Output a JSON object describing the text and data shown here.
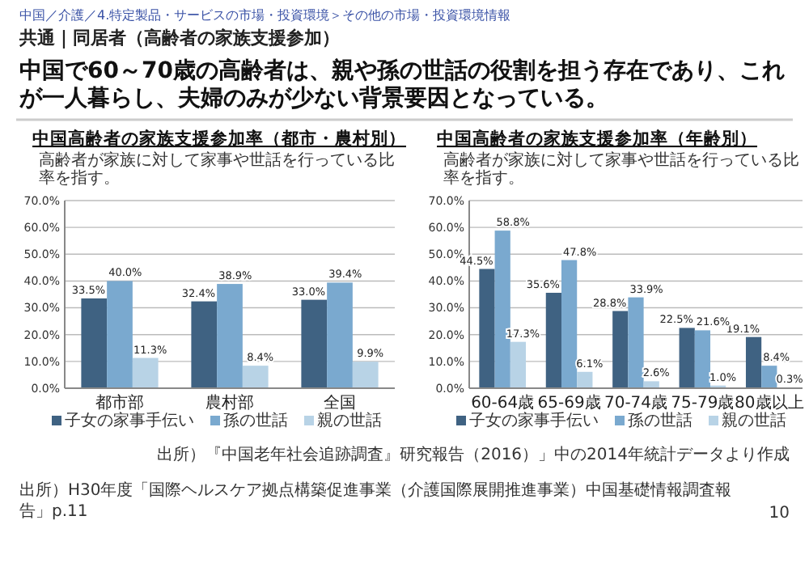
{
  "chart_data": [
    {
      "type": "bar",
      "title": "中国高齢者の家族支援参加率（都市・農村別）",
      "subtitle": "高齢者が家族に対して家事や世話を行っている比率を指す。",
      "annotations": [
        "中国／介護／4.特定製品・サービスの市場・投資環境＞その他の市場・投資環境情報",
        "共通｜同居者（高齢者の家族支援参加）",
        "中国で60～70歳の高齢者は、親や孫の世話の役割を担う存在であり、これが一人暮らし、夫婦のみが少ない背景要因となっている。"
      ],
      "categories": [
        "都市部",
        "農村部",
        "全国"
      ],
      "series": [
        {
          "name": "子女の家事手伝い",
          "color": "#3f6282",
          "values": [
            33.5,
            32.4,
            33.0
          ],
          "value_labels": [
            "33.5%",
            "32.4%",
            "33.0%"
          ]
        },
        {
          "name": "孫の世話",
          "color": "#7aa9cf",
          "values": [
            40.0,
            38.9,
            39.4
          ],
          "value_labels": [
            "40.0%",
            "38.9%",
            "39.4%"
          ]
        },
        {
          "name": "親の世話",
          "color": "#b8d3e6",
          "values": [
            11.3,
            8.4,
            9.9
          ],
          "value_labels": [
            "11.3%",
            "8.4%",
            "9.9%"
          ]
        }
      ],
      "ylim": [
        0,
        70
      ],
      "yticks": [
        {
          "value": 0,
          "label": "0.0%"
        },
        {
          "value": 10,
          "label": "10.0%"
        },
        {
          "value": 20,
          "label": "20.0%"
        },
        {
          "value": 30,
          "label": "30.0%"
        },
        {
          "value": 40,
          "label": "40.0%"
        },
        {
          "value": 50,
          "label": "50.0%"
        },
        {
          "value": 60,
          "label": "60.0%"
        },
        {
          "value": 70,
          "label": "70.0%"
        }
      ],
      "grid": "y",
      "legend": "bottom"
    },
    {
      "type": "bar",
      "title": "中国高齢者の家族支援参加率（年齢別）",
      "subtitle": "高齢者が家族に対して家事や世話を行っている比率を指す。",
      "annotations": [
        "出所）『中国老年社会追跡調査』研究報告（2016）」中の2014年統計データより作成",
        "出所）H30年度「国際ヘルスケア拠点構築促進事業（介護国際展開推進事業）中国基礎情報調査報告」p.11",
        "10"
      ],
      "categories": [
        "60-64歳",
        "65-69歳",
        "70-74歳",
        "75-79歳",
        "80歳以上"
      ],
      "series": [
        {
          "name": "子女の家事手伝い",
          "color": "#3f6282",
          "values": [
            44.5,
            35.6,
            28.8,
            22.5,
            19.1
          ],
          "value_labels": [
            "44.5%",
            "35.6%",
            "28.8%",
            "22.5%",
            "19.1%"
          ]
        },
        {
          "name": "孫の世話",
          "color": "#7aa9cf",
          "values": [
            58.8,
            47.8,
            33.9,
            21.6,
            8.4
          ],
          "value_labels": [
            "58.8%",
            "47.8%",
            "33.9%",
            "21.6%",
            "8.4%"
          ]
        },
        {
          "name": "親の世話",
          "color": "#b8d3e6",
          "values": [
            17.3,
            6.1,
            2.6,
            1.0,
            0.3
          ],
          "value_labels": [
            "17.3%",
            "6.1%",
            "2.6%",
            "1.0%",
            "0.3%"
          ]
        }
      ],
      "ylim": [
        0,
        70
      ],
      "yticks": [
        {
          "value": 0,
          "label": "0.0%"
        },
        {
          "value": 10,
          "label": "10.0%"
        },
        {
          "value": 20,
          "label": "20.0%"
        },
        {
          "value": 30,
          "label": "30.0%"
        },
        {
          "value": 40,
          "label": "40.0%"
        },
        {
          "value": 50,
          "label": "50.0%"
        },
        {
          "value": 60,
          "label": "60.0%"
        },
        {
          "value": 70,
          "label": "70.0%"
        }
      ],
      "grid": "y",
      "legend": "bottom"
    }
  ]
}
